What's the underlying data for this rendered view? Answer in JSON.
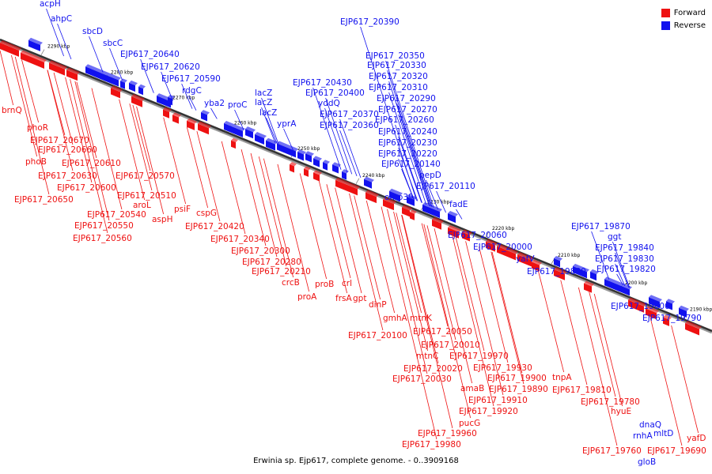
{
  "title": "Erwinia sp. Ejp617, complete genome. - 0..3909168",
  "legend": {
    "forward_label": "Forward",
    "reverse_label": "Reverse",
    "forward_color": "#ee1111",
    "reverse_color": "#1111ee"
  },
  "scale_labels": [
    "2290 kbp",
    "2280 kbp",
    "2270 kbp",
    "2260 kbp",
    "2250 kbp",
    "2240 kbp",
    "2230 kbp",
    "2220 kbp",
    "2210 kbp",
    "2200 kbp",
    "2190 kbp"
  ],
  "reverse_genes": [
    "acpH",
    "ahpC",
    "sbcD",
    "sbcC",
    "EJP617_20640",
    "EJP617_20620",
    "EJP617_20590",
    "rdgC",
    "yba2",
    "proC",
    "lacZ",
    "lacZ",
    "lacZ",
    "EJP617_20430",
    "EJP617_20400",
    "yddQ",
    "yprA",
    "EJP617_20390",
    "EJP617_20350",
    "EJP617_20330",
    "EJP617_20320",
    "EJP617_20310",
    "EJP617_20290",
    "EJP617_20270",
    "EJP617_20370",
    "EJP617_20360",
    "EJP617_20260",
    "EJP617_20240",
    "EJP617_20230",
    "EJP617_20220",
    "EJP617_20140",
    "pepD",
    "EJP617_20110",
    "omp39",
    "fadE",
    "EJP617_20060",
    "EJP617_20000",
    "yafV",
    "EJP617_19880",
    "EJP617_19870",
    "ggt",
    "EJP617_19840",
    "EJP617_19830",
    "EJP617_19820",
    "EJP617_19800",
    "EJP617_19790",
    "dnaQ",
    "rnhA",
    "mltD",
    "gloB"
  ],
  "forward_genes": [
    "brnQ",
    "phoR",
    "EJP617_20670",
    "EJP617_20660",
    "phoB",
    "EJP617_20610",
    "EJP617_20630",
    "EJP617_20570",
    "EJP617_20600",
    "EJP617_20510",
    "EJP617_20650",
    "aroL",
    "EJP617_20540",
    "aspH",
    "psiF",
    "EJP617_20550",
    "cspG",
    "EJP617_20420",
    "EJP617_20560",
    "EJP617_20340",
    "EJP617_20300",
    "EJP617_20280",
    "EJP617_20210",
    "crcB",
    "proB",
    "proA",
    "crl",
    "frsA",
    "gpt",
    "dinP",
    "gmhA",
    "EJP617_20100",
    "mtnK",
    "EJP617_20050",
    "EJP617_20010",
    "mtnC",
    "EJP617_19970",
    "EJP617_20020",
    "EJP617_19930",
    "EJP617_20030",
    "EJP617_19900",
    "amaB",
    "EJP617_19890",
    "EJP617_19910",
    "EJP617_19920",
    "pucG",
    "EJP617_19960",
    "EJP617_19980",
    "tnpA",
    "EJP617_19810",
    "EJP617_19780",
    "hyuE",
    "EJP617_19760",
    "EJP617_19690",
    "yafD"
  ]
}
